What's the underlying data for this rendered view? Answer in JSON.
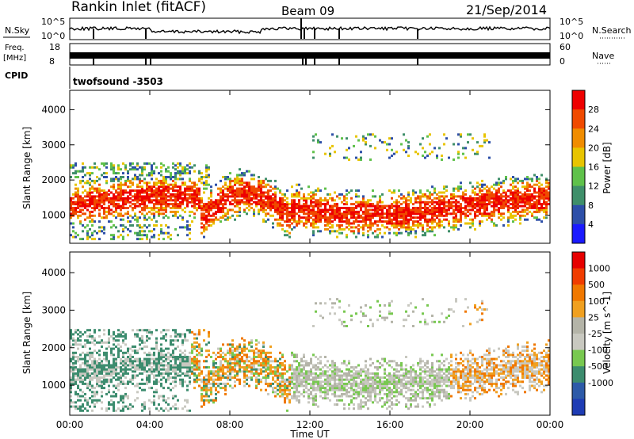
{
  "header": {
    "station": "Rankin Inlet (fitACF)",
    "beam": "Beam 09",
    "date": "21/Sep/2014"
  },
  "strips": {
    "nsky_label": "N.Sky",
    "nsky_ticks": [
      "10^5",
      "10^0"
    ],
    "nsearch_label": "N.Search",
    "nsearch_ticks": [
      "10^5",
      "10^0"
    ],
    "freq_label": "Freq.",
    "freq_unit": "[MHz]",
    "freq_ticks": [
      "18",
      "8"
    ],
    "nave_label": "Nave",
    "nave_ticks": [
      "60",
      "0"
    ],
    "cpid_label": "CPID",
    "cpid_value": "twofsound  -3503"
  },
  "chart_data": [
    {
      "type": "heatmap",
      "panel": "power",
      "ylabel": "Slant Range [km]",
      "yticks": [
        1000,
        2000,
        3000,
        4000
      ],
      "ylim": [
        200,
        4550
      ],
      "xlim_hours": [
        0,
        24
      ],
      "colorbar_label": "Power [dB]",
      "colorbar_ticks": [
        "4",
        "8",
        "12",
        "16",
        "20",
        "24",
        "28"
      ],
      "colors": [
        "#1a1aff",
        "#2d4fa8",
        "#3f8f6a",
        "#5fc14a",
        "#e8c400",
        "#f08c00",
        "#f04a00",
        "#ee0000"
      ]
    },
    {
      "type": "heatmap",
      "panel": "velocity",
      "ylabel": "Slant Range [km]",
      "yticks": [
        1000,
        2000,
        3000,
        4000
      ],
      "ylim": [
        200,
        4550
      ],
      "xlim_hours": [
        0,
        24
      ],
      "colorbar_label": "Velocity [m s^-1]",
      "colorbar_ticks": [
        "1000",
        "500",
        "100",
        "25",
        "-25",
        "-100",
        "-500",
        "-1000"
      ],
      "colors": [
        "#1e3cb4",
        "#2d5aa8",
        "#3c8c6e",
        "#78c850",
        "#c8c8c0",
        "#b4b4a8",
        "#f0a020",
        "#f07800",
        "#f03c00",
        "#e60000"
      ]
    }
  ],
  "xaxis": {
    "label": "Time UT",
    "ticks": [
      "00:00",
      "04:00",
      "08:00",
      "12:00",
      "16:00",
      "20:00",
      "00:00"
    ]
  }
}
